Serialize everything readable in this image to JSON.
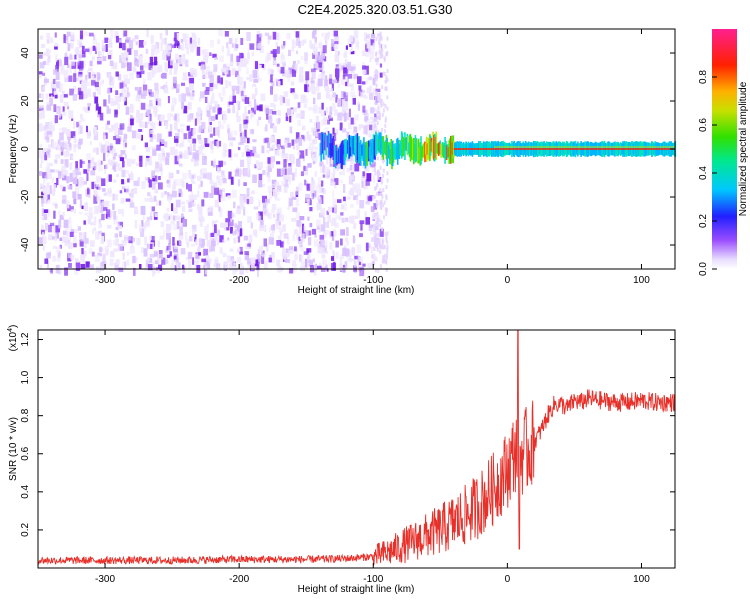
{
  "title": "C2E4.2025.320.03.51.G30",
  "colors": {
    "snr_line": "#e8302a",
    "spectrogram_noise": "#7a2cf0",
    "background": "#ffffff"
  },
  "chart_data": [
    {
      "type": "heatmap",
      "xlabel": "Height of straight line (km)",
      "ylabel": "Frequency (Hz)",
      "xlim": [
        -350,
        125
      ],
      "ylim": [
        -50,
        50
      ],
      "x_ticks": [
        -300,
        -200,
        -100,
        0,
        100
      ],
      "y_ticks": [
        -40,
        -20,
        0,
        20,
        40
      ],
      "colorbar": {
        "label": "Normalized spectral amplitude",
        "range": [
          0.0,
          1.0
        ],
        "ticks": [
          "0.0",
          "0.2",
          "0.4",
          "0.6",
          "0.8"
        ],
        "colormap": "rainbow (white-purple-blue-cyan-green-yellow-red-pink)"
      },
      "features": {
        "noise_region_x": [
          -350,
          -95
        ],
        "signal_line_freq_hz": 0,
        "signal_onset_x": -140,
        "strong_signal_x": [
          -40,
          125
        ]
      }
    },
    {
      "type": "line",
      "xlabel": "Height of straight line (km)",
      "ylabel": "SNR (10 * v/v)",
      "multiplier_label": "(x10",
      "multiplier_exp": "4",
      "xlim": [
        -350,
        125
      ],
      "ylim": [
        0,
        1.25
      ],
      "x_ticks": [
        -300,
        -200,
        -100,
        0,
        100
      ],
      "y_ticks": [
        "0.2",
        "0.4",
        "0.6",
        "0.8",
        "1.0",
        "1.2"
      ],
      "series": [
        {
          "x": [
            -350,
            -300,
            -250,
            -200,
            -150,
            -120,
            -100,
            -90,
            -80,
            -70,
            -60,
            -50,
            -40,
            -30,
            -20,
            -10,
            0,
            5,
            8,
            10,
            15,
            20,
            25,
            30,
            35,
            40,
            45,
            50,
            55,
            60,
            70,
            80,
            90,
            100,
            110,
            125
          ],
          "y": [
            0.04,
            0.04,
            0.04,
            0.045,
            0.045,
            0.05,
            0.06,
            0.08,
            0.11,
            0.14,
            0.17,
            0.2,
            0.24,
            0.28,
            0.34,
            0.42,
            0.52,
            0.6,
            0.64,
            0.6,
            0.62,
            0.66,
            0.72,
            0.8,
            0.86,
            0.86,
            0.84,
            0.88,
            0.87,
            0.89,
            0.88,
            0.87,
            0.87,
            0.88,
            0.87,
            0.87
          ]
        }
      ]
    }
  ]
}
